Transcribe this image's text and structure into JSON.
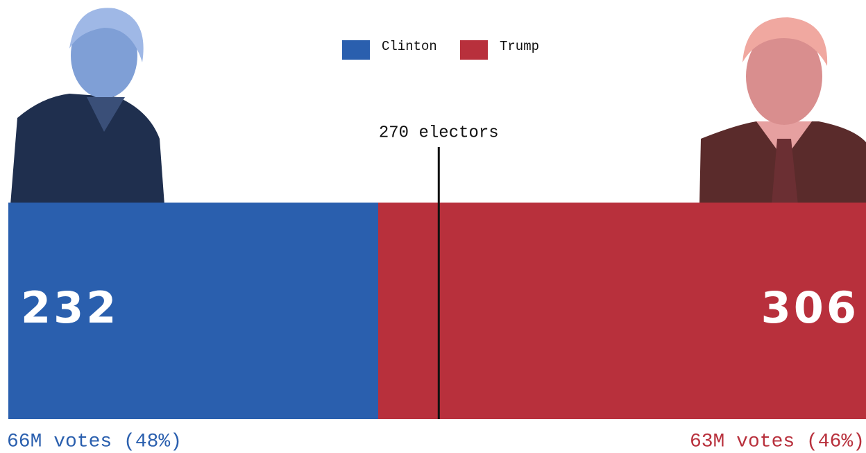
{
  "chart_data": {
    "type": "stacked-bar",
    "series": [
      {
        "name": "Clinton",
        "color": "#2a5fae",
        "values": [
          232
        ],
        "popular_vote": "66M votes (48%)"
      },
      {
        "name": "Trump",
        "color": "#b8303c",
        "values": [
          306
        ],
        "popular_vote": "63M votes (46%)"
      }
    ],
    "xlim": [
      0,
      538
    ],
    "reference": {
      "value": 270,
      "label": "270 electors"
    }
  }
}
